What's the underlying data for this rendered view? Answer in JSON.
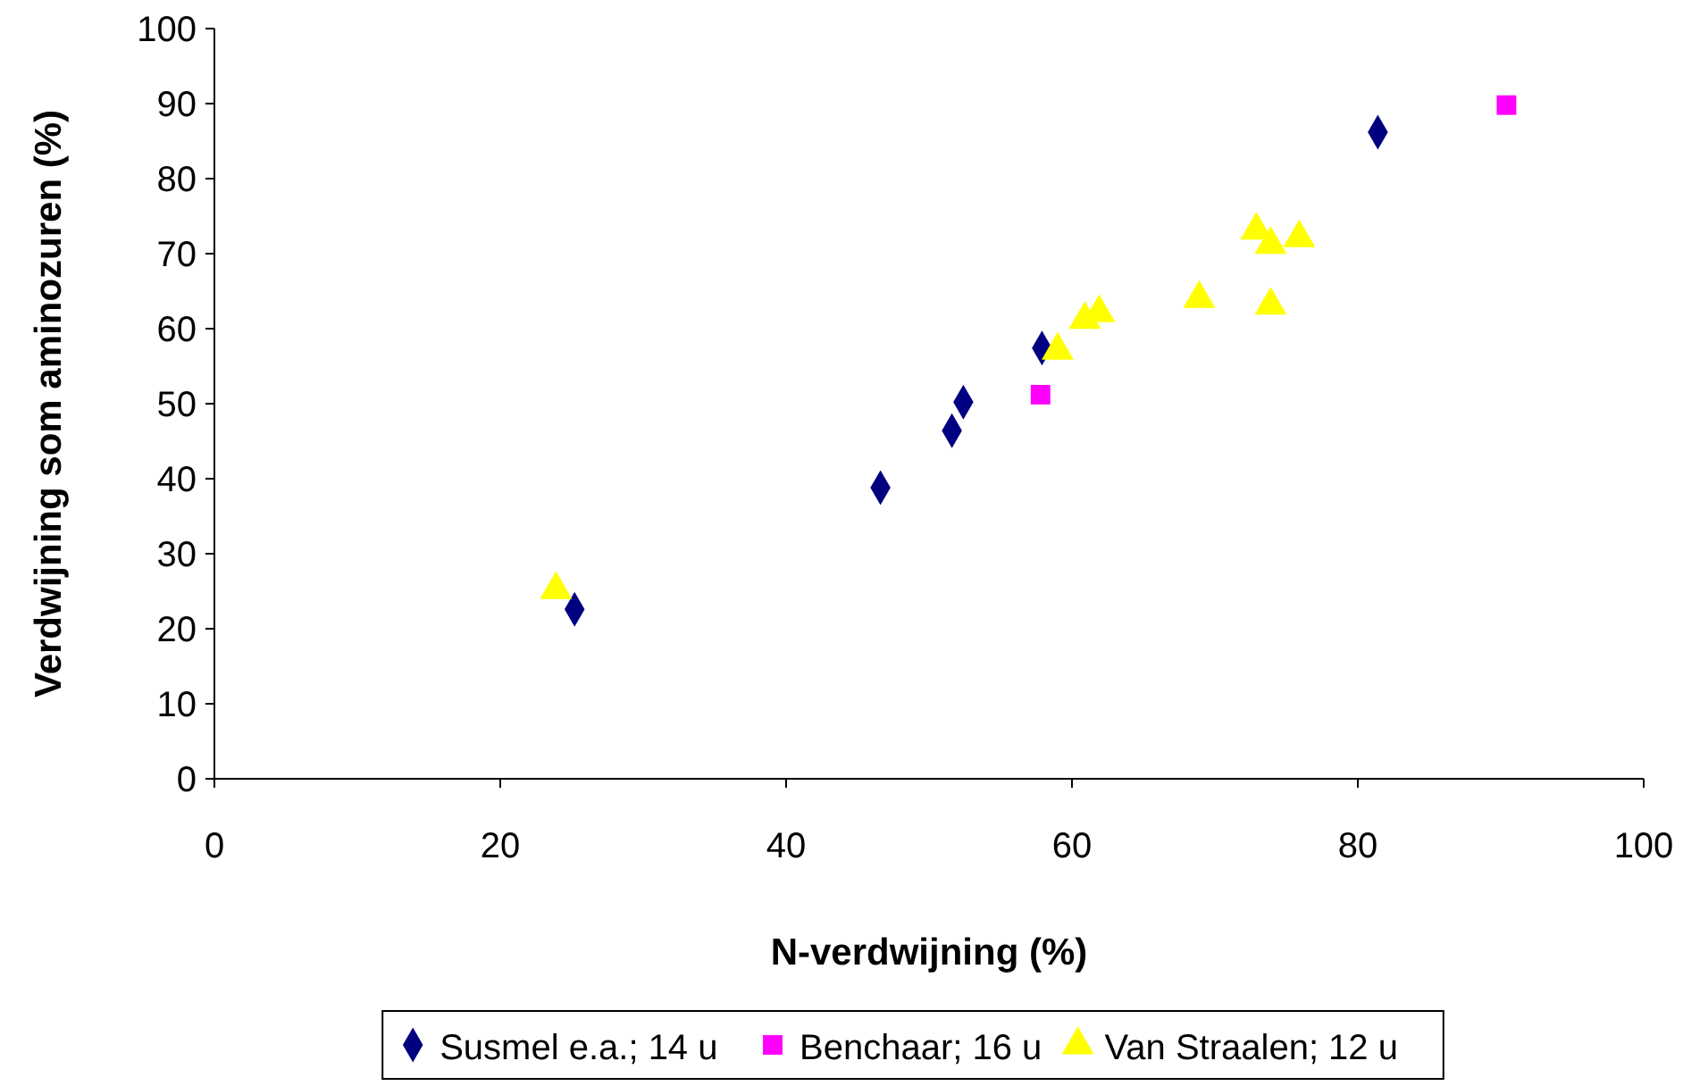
{
  "chart_data": {
    "type": "scatter",
    "xlabel": "N-verdwijning (%)",
    "ylabel": "Verdwijning som aminozuren (%)",
    "xlim": [
      0,
      100
    ],
    "ylim": [
      0,
      100
    ],
    "xticks": [
      0,
      20,
      40,
      60,
      80,
      100
    ],
    "yticks": [
      0,
      10,
      20,
      30,
      40,
      50,
      60,
      70,
      80,
      90,
      100
    ],
    "grid": false,
    "legend": "bottom",
    "series": [
      {
        "name": "Susmel e.a.; 14 u",
        "color": "#000080",
        "marker": "diamond",
        "x": [
          25.2,
          46.6,
          51.6,
          52.4,
          57.9,
          81.4
        ],
        "values": [
          22.6,
          38.8,
          46.4,
          50.2,
          57.4,
          86.2
        ]
      },
      {
        "name": "Benchaar; 16 u",
        "color": "#ff00ff",
        "marker": "square",
        "x": [
          57.8,
          90.4
        ],
        "values": [
          51.2,
          89.8
        ]
      },
      {
        "name": "Van Straalen; 12 u",
        "color": "#ffff00",
        "marker": "triangle",
        "x": [
          23.9,
          59,
          60.9,
          61.9,
          68.9,
          72.9,
          73.9,
          75.9,
          73.9
        ],
        "values": [
          25.2,
          57.1,
          61.2,
          62.1,
          64.0,
          73.1,
          71.2,
          72.1,
          63.1
        ]
      }
    ]
  }
}
